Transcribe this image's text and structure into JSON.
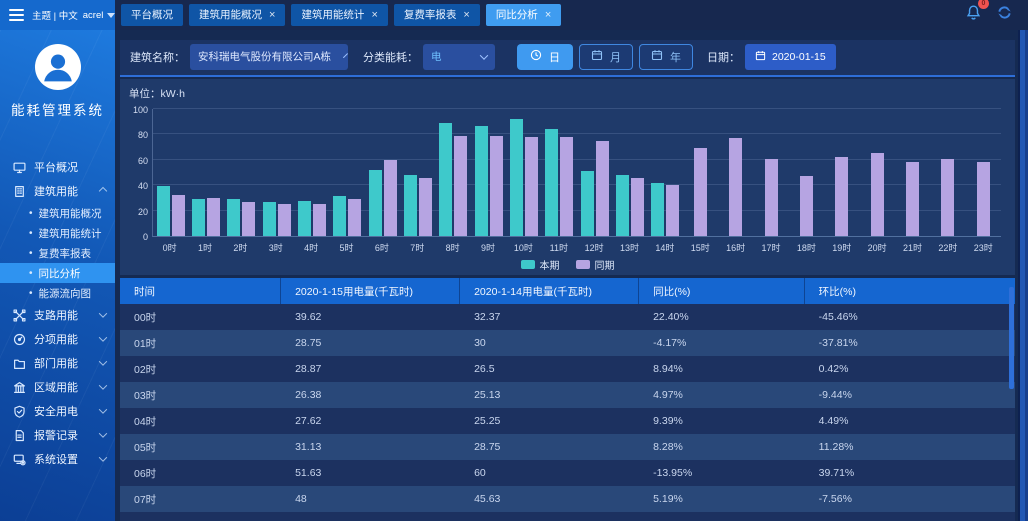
{
  "topbar": {
    "title": "主题 | 中文",
    "user": "acrel",
    "bell_badge": "0",
    "tabs": [
      {
        "label": "平台概况",
        "closable": false,
        "active": false
      },
      {
        "label": "建筑用能概况",
        "closable": true,
        "active": false
      },
      {
        "label": "建筑用能统计",
        "closable": true,
        "active": false
      },
      {
        "label": "复费率报表",
        "closable": true,
        "active": false
      },
      {
        "label": "同比分析",
        "closable": true,
        "active": true
      }
    ]
  },
  "sidebar": {
    "system_title": "能耗管理系统",
    "items": [
      {
        "label": "平台概况",
        "icon": "monitor-icon"
      },
      {
        "label": "建筑用能",
        "icon": "building-icon",
        "expanded": true,
        "children": [
          {
            "label": "建筑用能概况",
            "active": false
          },
          {
            "label": "建筑用能统计",
            "active": false
          },
          {
            "label": "复费率报表",
            "active": false
          },
          {
            "label": "同比分析",
            "active": true
          },
          {
            "label": "能源流向图",
            "active": false
          }
        ]
      },
      {
        "label": "支路用能",
        "icon": "branch-icon"
      },
      {
        "label": "分项用能",
        "icon": "meter-icon"
      },
      {
        "label": "部门用能",
        "icon": "folder-icon"
      },
      {
        "label": "区域用能",
        "icon": "region-icon"
      },
      {
        "label": "安全用电",
        "icon": "shield-icon"
      },
      {
        "label": "报警记录",
        "icon": "alarm-log-icon"
      },
      {
        "label": "系统设置",
        "icon": "system-settings-icon"
      }
    ]
  },
  "filters": {
    "building_label": "建筑名称：",
    "building_value": "安科瑞电气股份有限公司A栋",
    "category_label": "分类能耗：",
    "category_value": "电",
    "day_label": "日",
    "month_label": "月",
    "year_label": "年",
    "active_granularity": "日",
    "date_label": "日期：",
    "date_value": "2020-01-15"
  },
  "chart_data": {
    "type": "bar",
    "title": "单位：kW·h",
    "categories": [
      "0时",
      "1时",
      "2时",
      "3时",
      "4时",
      "5时",
      "6时",
      "7时",
      "8时",
      "9时",
      "10时",
      "11时",
      "12时",
      "13时",
      "14时",
      "15时",
      "16时",
      "17时",
      "18时",
      "19时",
      "20时",
      "21时",
      "22时",
      "23时"
    ],
    "series": [
      {
        "name": "本期",
        "color": "#3ec9cb",
        "values": [
          39.62,
          28.75,
          28.87,
          26.38,
          27.62,
          31.13,
          51.63,
          48,
          89,
          86.5,
          92.5,
          84,
          51.5,
          48,
          41.5,
          null,
          null,
          null,
          null,
          null,
          null,
          null,
          null,
          null
        ]
      },
      {
        "name": "同期",
        "color": "#b6a4e2",
        "values": [
          32.37,
          30,
          26.5,
          25.13,
          25.25,
          28.75,
          60,
          45.63,
          79,
          79,
          78,
          78,
          75,
          45.5,
          40,
          69,
          77,
          61,
          47,
          62,
          65.5,
          58.5,
          60.5,
          58.5
        ]
      }
    ],
    "ylim": [
      0,
      100
    ],
    "yticks": [
      0,
      20,
      40,
      60,
      80,
      100
    ],
    "grid": true,
    "legend_position": "bottom"
  },
  "table": {
    "columns": [
      "时间",
      "2020-1-15用电量(千瓦时)",
      "2020-1-14用电量(千瓦时)",
      "同比(%)",
      "环比(%)"
    ],
    "rows": [
      [
        "00时",
        "39.62",
        "32.37",
        "22.40%",
        "-45.46%"
      ],
      [
        "01时",
        "28.75",
        "30",
        "-4.17%",
        "-37.81%"
      ],
      [
        "02时",
        "28.87",
        "26.5",
        "8.94%",
        "0.42%"
      ],
      [
        "03时",
        "26.38",
        "25.13",
        "4.97%",
        "-9.44%"
      ],
      [
        "04时",
        "27.62",
        "25.25",
        "9.39%",
        "4.49%"
      ],
      [
        "05时",
        "31.13",
        "28.75",
        "8.28%",
        "11.28%"
      ],
      [
        "06时",
        "51.63",
        "60",
        "-13.95%",
        "39.71%"
      ],
      [
        "07时",
        "48",
        "45.63",
        "5.19%",
        "-7.56%"
      ]
    ]
  },
  "colors": {
    "accent": "#3f9af0",
    "series_current": "#3ec9cb",
    "series_previous": "#b6a4e2",
    "table_header": "#1566d0",
    "active_tab": "#3f9cf0"
  }
}
